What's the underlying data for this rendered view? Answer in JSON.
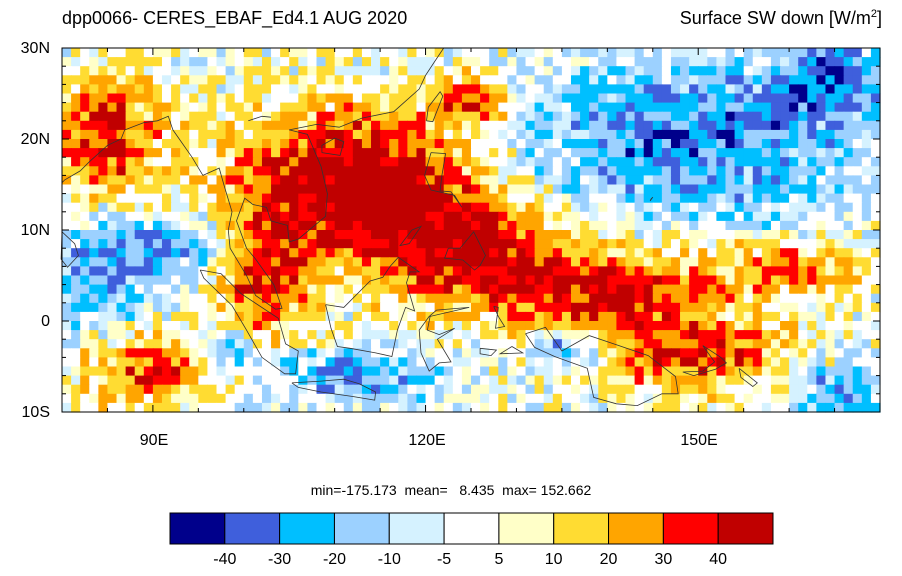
{
  "title": {
    "left": "dpp0066- CERES_EBAF_Ed4.1  AUG 2020",
    "right_main": "Surface SW down [W/m",
    "right_sup": "2",
    "right_end": "]"
  },
  "axes": {
    "lat_labels": [
      "30N",
      "20N",
      "10N",
      "0",
      "10S"
    ],
    "lon_labels": [
      "90E",
      "120E",
      "150E"
    ]
  },
  "stats": {
    "text": "min=-175.173  mean=   8.435  max= 152.662"
  },
  "colorbar": {
    "colors": [
      "#00008b",
      "#3f5fdc",
      "#00bfff",
      "#9cd1ff",
      "#d5f2ff",
      "#ffffff",
      "#ffffc8",
      "#ffdc32",
      "#ffa500",
      "#ff0000",
      "#c00000"
    ],
    "labels": [
      "-40",
      "-30",
      "-20",
      "-10",
      "-5",
      "5",
      "10",
      "20",
      "30",
      "40"
    ]
  },
  "chart_data": {
    "type": "heatmap",
    "title": "dpp0066- CERES_EBAF_Ed4.1  AUG 2020",
    "variable": "Surface SW down [W/m2]",
    "x_range_deg_east": [
      80,
      170
    ],
    "y_range_deg_north": [
      -10,
      30
    ],
    "color_levels": [
      -40,
      -30,
      -20,
      -10,
      -5,
      5,
      10,
      20,
      30,
      40
    ],
    "min": -175.173,
    "mean": 8.435,
    "max": 152.662
  }
}
